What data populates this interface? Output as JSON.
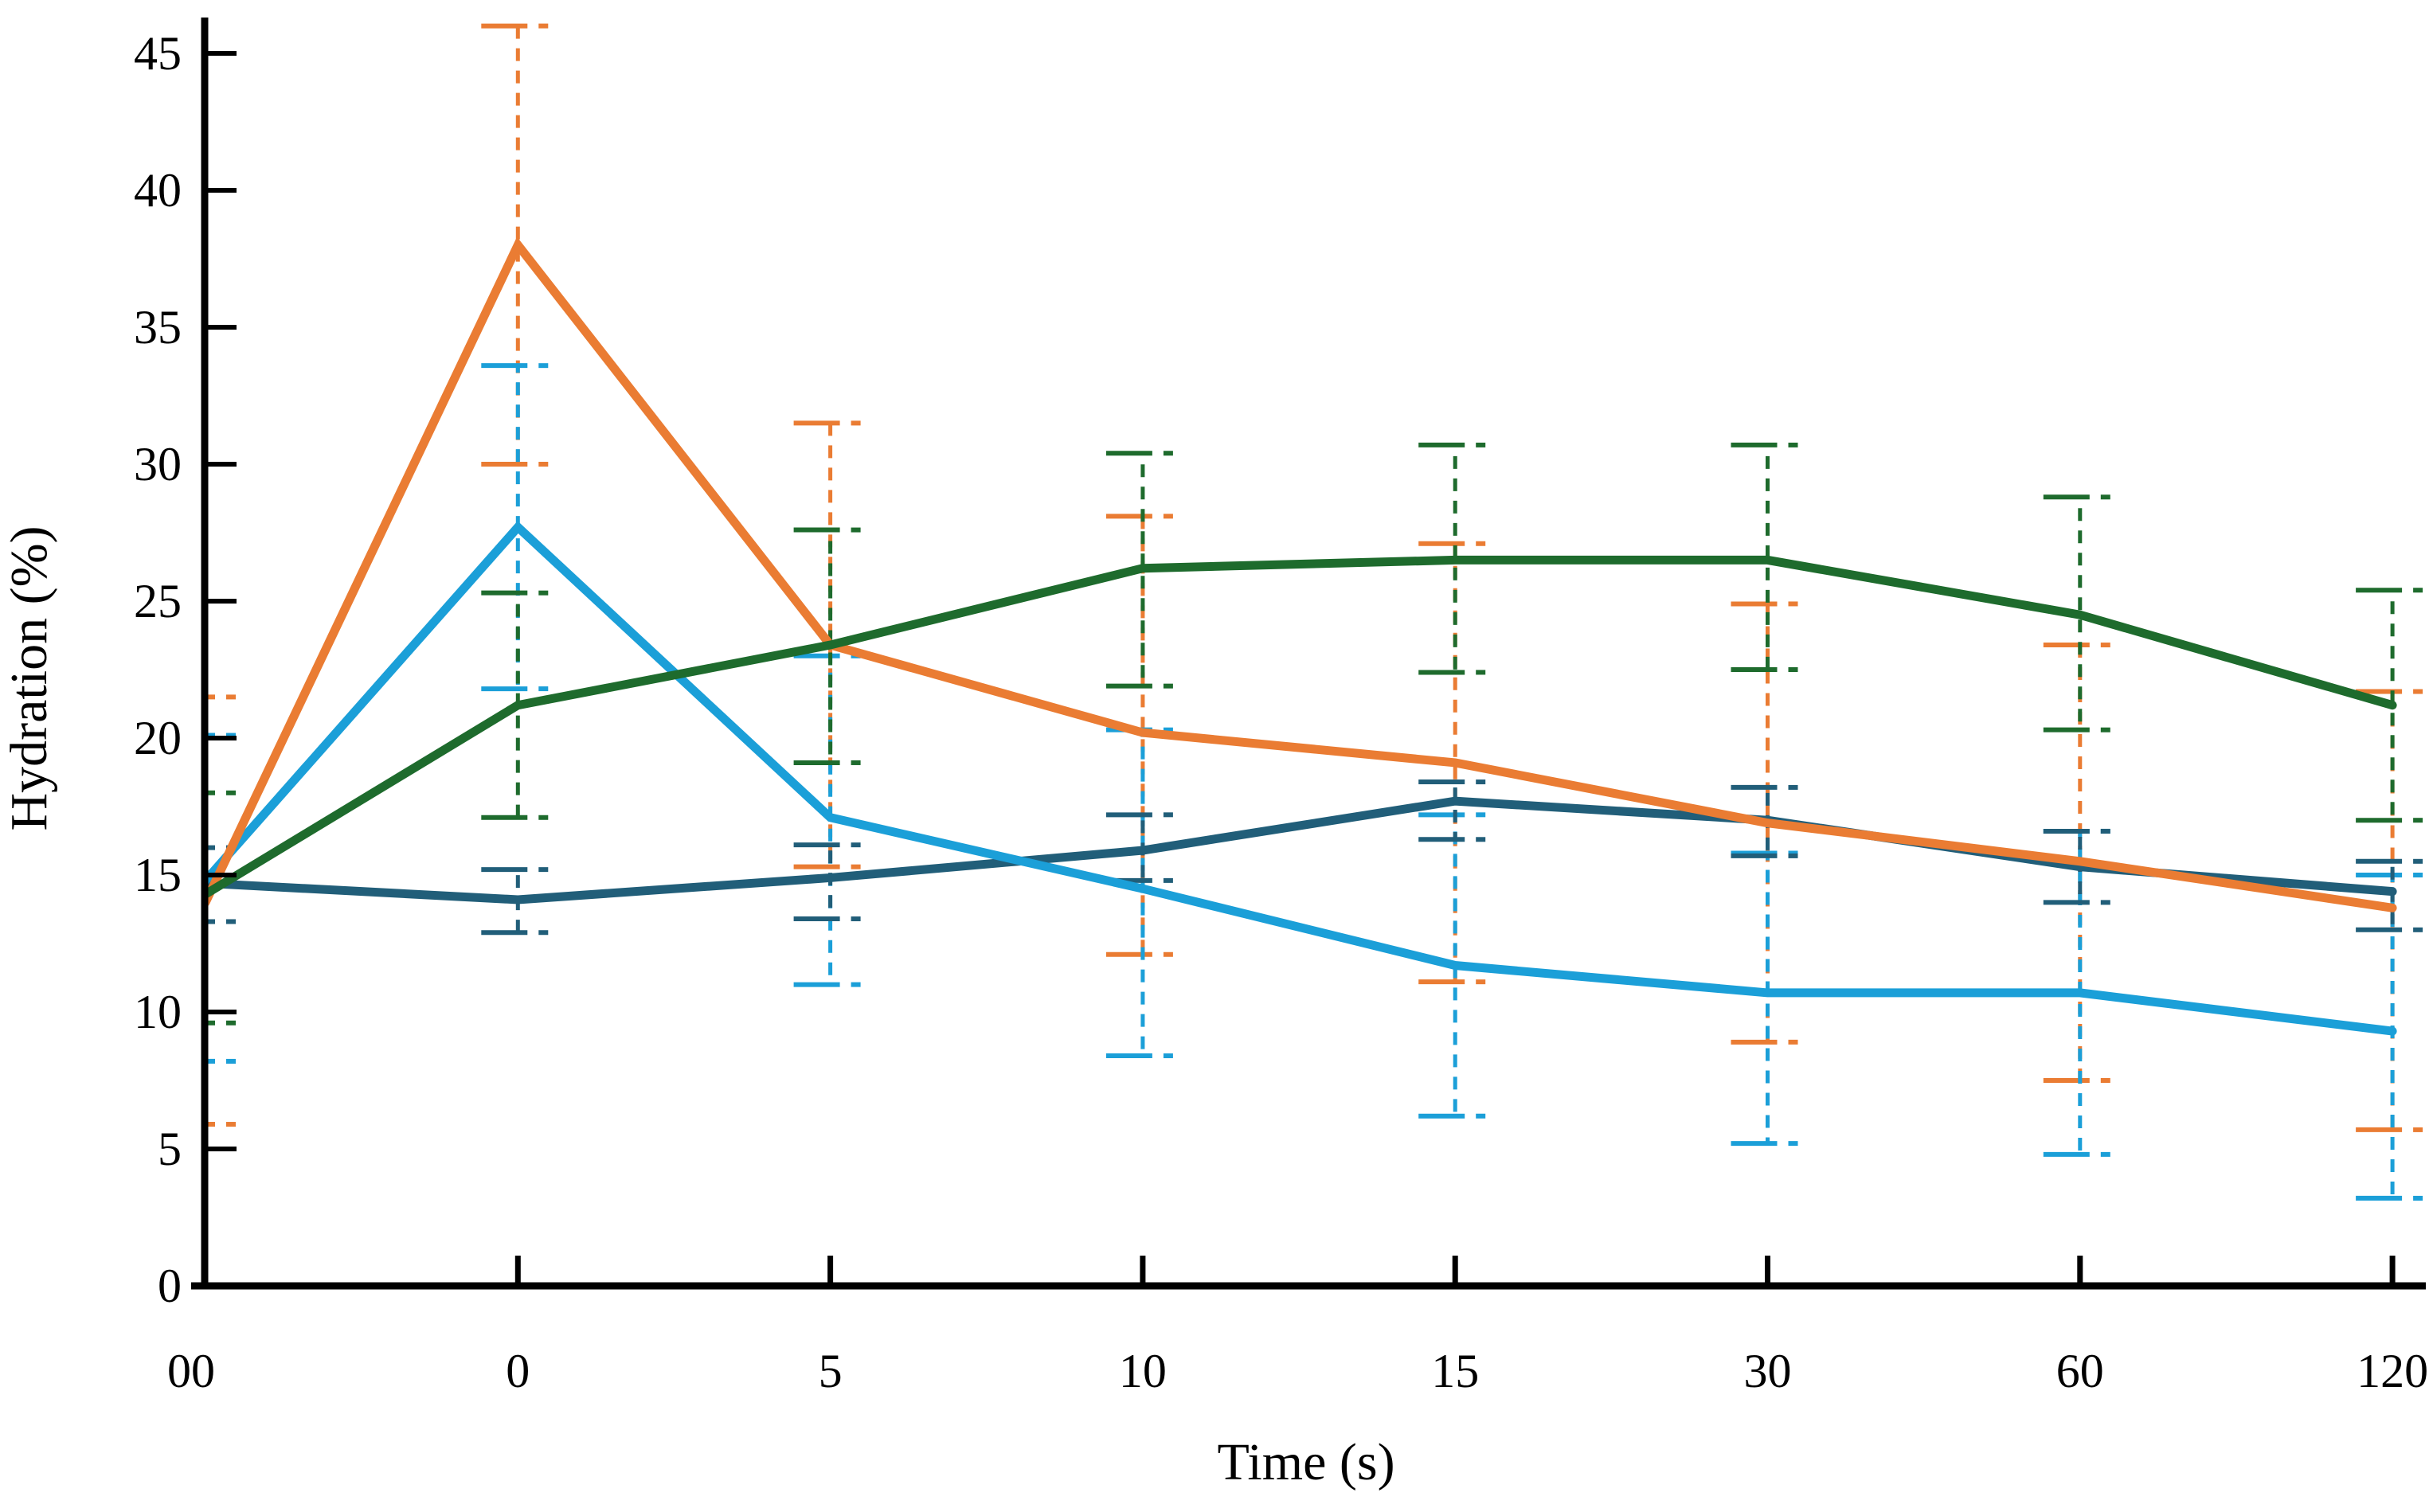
{
  "page": {
    "background": "#ffffff"
  },
  "chart_data": {
    "type": "line",
    "title": "",
    "xlabel": "Time (s)",
    "ylabel": "Hydration (%)",
    "categories": [
      "00",
      "0",
      "5",
      "10",
      "15",
      "30",
      "60",
      "120"
    ],
    "ylim": [
      0,
      45
    ],
    "yticks": [
      0,
      5,
      10,
      15,
      20,
      25,
      30,
      35,
      40,
      45
    ],
    "grid": false,
    "legend": "none",
    "error_bars": {
      "style": "dashed",
      "caps": true
    },
    "series": [
      {
        "name": "orange",
        "color": "#EA7C33",
        "values": [
          14.0,
          38.0,
          23.4,
          20.2,
          19.1,
          16.9,
          15.5,
          13.8
        ],
        "err_low": [
          5.9,
          30.0,
          15.3,
          12.1,
          11.1,
          8.9,
          7.5,
          5.7
        ],
        "err_high": [
          21.5,
          46.0,
          31.5,
          28.1,
          27.1,
          24.9,
          23.4,
          21.7
        ]
      },
      {
        "name": "light-blue",
        "color": "#1B9FD8",
        "values": [
          14.8,
          27.7,
          17.1,
          14.5,
          11.7,
          10.7,
          10.7,
          9.3
        ],
        "err_low": [
          8.2,
          21.8,
          11.0,
          8.4,
          6.2,
          5.2,
          4.8,
          3.2
        ],
        "err_high": [
          20.1,
          33.6,
          23.0,
          20.3,
          17.2,
          15.8,
          16.6,
          15.0
        ]
      },
      {
        "name": "green",
        "color": "#1E6B2D",
        "values": [
          14.3,
          21.2,
          23.4,
          26.2,
          26.5,
          26.5,
          24.5,
          21.2
        ],
        "err_low": [
          9.6,
          17.1,
          19.1,
          21.9,
          22.4,
          22.5,
          20.3,
          17.0
        ],
        "err_high": [
          18.0,
          25.3,
          27.6,
          30.4,
          30.7,
          30.7,
          28.8,
          25.4
        ]
      },
      {
        "name": "dark-blue",
        "color": "#215E79",
        "values": [
          14.7,
          14.1,
          14.9,
          15.9,
          17.7,
          17.0,
          15.3,
          14.4
        ],
        "err_low": [
          13.3,
          12.9,
          13.4,
          14.8,
          16.3,
          15.7,
          14.0,
          13.0
        ],
        "err_high": [
          16.0,
          15.2,
          16.1,
          17.2,
          18.4,
          18.2,
          16.6,
          15.5
        ]
      }
    ]
  }
}
